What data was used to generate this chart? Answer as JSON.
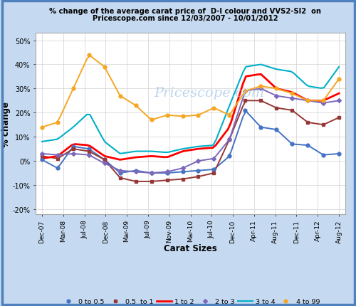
{
  "title_line1": "% change of the average carat price of  D-I colour and VVS2-SI2  on",
  "title_line2": "Pricescope.com since 12/03/2007 - 10/01/2012",
  "xlabel": "Carat Sizes",
  "ylabel": "% change",
  "watermark": "Pricescope.com",
  "ylim": [
    -22,
    53
  ],
  "yticks": [
    -20,
    -10,
    0,
    10,
    20,
    30,
    40,
    50
  ],
  "ytick_labels": [
    "-20%",
    "-10%",
    "0%",
    "10%",
    "20%",
    "30%",
    "40%",
    "50%"
  ],
  "bg_color": "#c5d9f0",
  "plot_bg_color": "#ffffff",
  "border_color": "#4f81bd",
  "xtick_labels": [
    "Dec-07",
    "Mar-08",
    "Jul-08",
    "Dec-08",
    "Mar-09",
    "Jul-09",
    "Nov-09",
    "Mar-10",
    "Jul-10",
    "Dec-10",
    "Apr-11",
    "Aug-11",
    "Dec-11",
    "Apr-12",
    "Aug-12"
  ],
  "series": [
    {
      "label": "0 to 0.5",
      "color": "#4472c4",
      "marker": "o",
      "markersize": 3.5,
      "linewidth": 1.4,
      "values": [
        0.5,
        -3.0,
        6.0,
        5.0,
        0.5,
        -5.0,
        -4.0,
        -5.0,
        -5.0,
        -4.5,
        -4.0,
        -3.5,
        2.0,
        21.0,
        14.0,
        13.0,
        7.0,
        6.5,
        2.5,
        3.0
      ]
    },
    {
      "label": "0.5  to 1",
      "color": "#953735",
      "marker": "s",
      "markersize": 3.5,
      "linewidth": 1.4,
      "values": [
        2.0,
        1.0,
        5.0,
        4.0,
        0.5,
        -7.0,
        -8.5,
        -8.5,
        -8.0,
        -7.5,
        -6.5,
        -5.0,
        9.0,
        25.0,
        25.0,
        22.0,
        21.0,
        16.0,
        15.0,
        18.0
      ]
    },
    {
      "label": "1 to 2",
      "color": "#ff0000",
      "marker": null,
      "markersize": 0,
      "linewidth": 2.0,
      "values": [
        1.0,
        2.0,
        7.0,
        6.5,
        2.0,
        0.5,
        1.5,
        2.0,
        1.5,
        4.0,
        5.0,
        5.5,
        14.0,
        35.0,
        36.0,
        30.0,
        28.5,
        25.0,
        25.0,
        28.0
      ]
    },
    {
      "label": "2 to 3",
      "color": "#7b68bb",
      "marker": "D",
      "markersize": 3.0,
      "linewidth": 1.4,
      "values": [
        3.0,
        2.5,
        3.0,
        2.5,
        -1.0,
        -4.0,
        -4.5,
        -5.0,
        -4.5,
        -3.0,
        0.0,
        1.0,
        9.0,
        29.0,
        30.0,
        27.0,
        26.0,
        25.0,
        24.0,
        25.0
      ]
    },
    {
      "label": "3 to 4",
      "color": "#00b0c8",
      "marker": null,
      "markersize": 0,
      "linewidth": 1.5,
      "values": [
        8.0,
        9.0,
        14.0,
        20.0,
        8.0,
        3.0,
        4.0,
        4.0,
        3.5,
        5.0,
        6.0,
        6.5,
        23.0,
        39.0,
        40.0,
        38.0,
        37.0,
        31.0,
        30.0,
        39.0
      ]
    },
    {
      "label": "4 to 99",
      "color": "#f5a623",
      "marker": "o",
      "markersize": 3.5,
      "linewidth": 1.4,
      "values": [
        14.0,
        16.0,
        30.0,
        44.0,
        39.0,
        27.0,
        23.0,
        17.0,
        19.0,
        18.5,
        19.0,
        22.0,
        19.0,
        29.0,
        31.0,
        30.0,
        28.0,
        25.0,
        25.0,
        34.0
      ]
    }
  ]
}
